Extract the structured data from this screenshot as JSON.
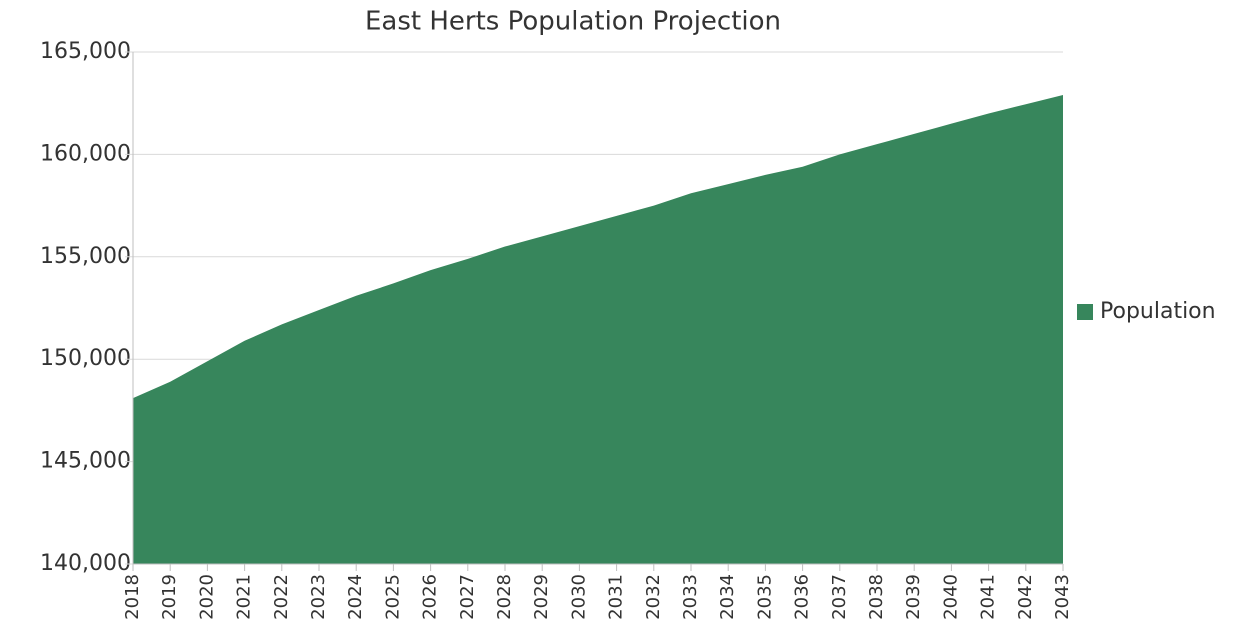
{
  "chart_data": {
    "type": "area",
    "title": "East Herts Population Projection",
    "categories": [
      "2018",
      "2019",
      "2020",
      "2021",
      "2022",
      "2023",
      "2024",
      "2025",
      "2026",
      "2027",
      "2028",
      "2029",
      "2030",
      "2031",
      "2032",
      "2033",
      "2034",
      "2035",
      "2036",
      "2037",
      "2038",
      "2039",
      "2040",
      "2041",
      "2042",
      "2043"
    ],
    "series": [
      {
        "name": "Population",
        "color": "#37865c",
        "values": [
          148100,
          148900,
          149900,
          150900,
          151700,
          152400,
          153100,
          153700,
          154350,
          154900,
          155500,
          156000,
          156500,
          157000,
          157500,
          158100,
          158550,
          159000,
          159400,
          160000,
          160500,
          161000,
          161500,
          162000,
          162450,
          162900
        ]
      }
    ],
    "ylim": [
      140000,
      165000
    ],
    "yticks": [
      {
        "value": 140000,
        "label": "140,000"
      },
      {
        "value": 145000,
        "label": "145,000"
      },
      {
        "value": 150000,
        "label": "150,000"
      },
      {
        "value": 155000,
        "label": "155,000"
      },
      {
        "value": 160000,
        "label": "160,000"
      },
      {
        "value": 165000,
        "label": "165,000"
      }
    ],
    "grid": true,
    "legend": "right"
  }
}
